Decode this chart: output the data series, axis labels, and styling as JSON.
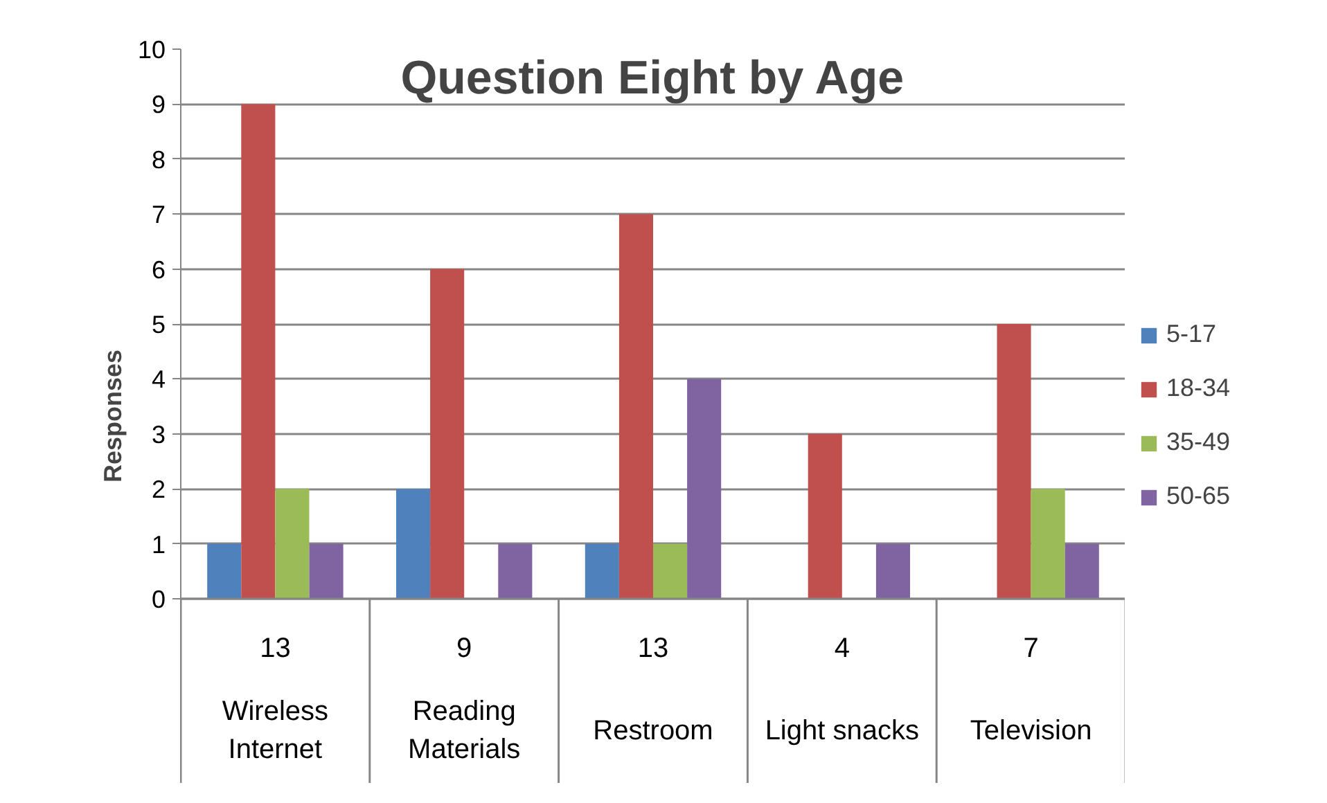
{
  "chart_data": {
    "type": "bar",
    "title": "Question Eight by Age",
    "ylabel": "Responses",
    "categories": [
      "Wireless Internet",
      "Reading Materials",
      "Restroom",
      "Light snacks",
      "Television"
    ],
    "series": [
      {
        "name": "5-17",
        "color": "#4f81bd",
        "values": [
          1,
          2,
          1,
          0,
          0
        ]
      },
      {
        "name": "18-34",
        "color": "#c0504d",
        "values": [
          9,
          6,
          7,
          3,
          5
        ]
      },
      {
        "name": "35-49",
        "color": "#9bbb59",
        "values": [
          2,
          0,
          1,
          0,
          2
        ]
      },
      {
        "name": "50-65",
        "color": "#8064a2",
        "values": [
          1,
          1,
          4,
          1,
          1
        ]
      }
    ],
    "totals": [
      "13",
      "9",
      "13",
      "4",
      "7"
    ],
    "ylim": [
      0,
      10
    ],
    "yticks": [
      0,
      1,
      2,
      3,
      4,
      5,
      6,
      7,
      8,
      9,
      10
    ],
    "grid": "y",
    "legend": "right"
  }
}
